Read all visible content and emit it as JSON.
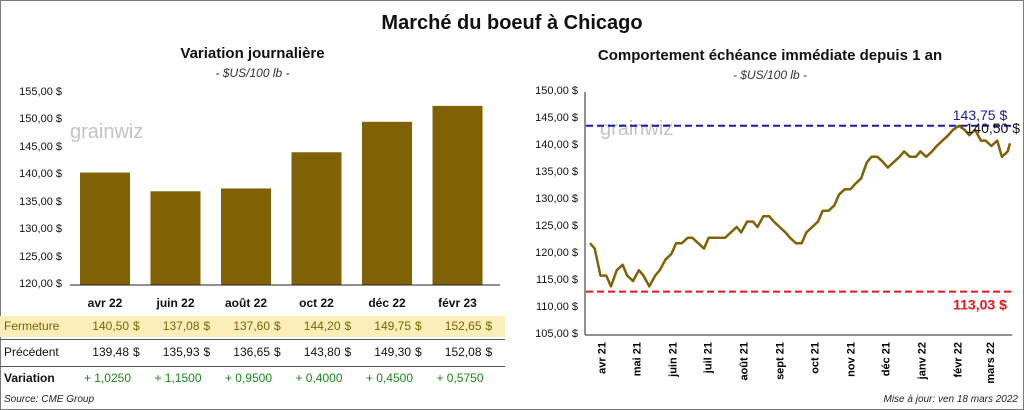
{
  "main_title": "Marché du boeuf à Chicago",
  "left": {
    "title": "Variation  journalière",
    "unit": "- $US/100 lb -",
    "watermark": "grainwiz",
    "yticks": [
      "155,00 $",
      "150,00 $",
      "145,00 $",
      "140,00 $",
      "135,00 $",
      "130,00 $",
      "125,00 $",
      "120,00 $"
    ],
    "bar_color": "#806205"
  },
  "right": {
    "title": "Comportement  échéance immédiate depuis 1 an",
    "unit": "- $US/100 lb -",
    "watermark": "grainwiz",
    "yticks": [
      "150,00 $",
      "145,00 $",
      "140,00 $",
      "135,00 $",
      "130,00 $",
      "125,00 $",
      "120,00 $",
      "115,00 $",
      "110,00 $",
      "105,00 $"
    ],
    "months": [
      "avr 21",
      "mai 21",
      "juin 21",
      "juil 21",
      "août 21",
      "sept 21",
      "oct 21",
      "nov 21",
      "déc 21",
      "janv 22",
      "févr 22",
      "mars 22"
    ],
    "max_label": "143,75 $",
    "min_label": "113,03 $",
    "last_label": "140,50 $",
    "max_color": "#1a1aaa",
    "min_color": "#e8141b",
    "line_color": "#806205"
  },
  "table": {
    "fermeture_label": "Fermeture",
    "precedent_label": "Précédent",
    "variation_label": "Variation",
    "currency": "$",
    "fermeture": [
      "140,50",
      "137,08",
      "137,60",
      "144,20",
      "149,75",
      "152,65"
    ],
    "precedent": [
      "139,48",
      "135,93",
      "136,65",
      "143,80",
      "149,30",
      "152,08"
    ],
    "variation": [
      "+ 1,0250",
      "+ 1,1500",
      "+ 0,9500",
      "+ 0,4000",
      "+ 0,4500",
      "+ 0,5750"
    ],
    "highlight_color": "#fbeeb8"
  },
  "footer": {
    "source": "Source: CME Group",
    "updated": "Mise à jour: ven 18 mars 2022"
  },
  "chart_data": [
    {
      "type": "bar",
      "title": "Variation  journalière",
      "subtitle": "- $US/100 lb -",
      "categories": [
        "avr 22",
        "juin 22",
        "août 22",
        "oct 22",
        "déc 22",
        "févr 23"
      ],
      "values": [
        140.5,
        137.08,
        137.6,
        144.2,
        149.75,
        152.65
      ],
      "ylim": [
        120,
        155
      ],
      "grid": false
    },
    {
      "type": "line",
      "title": "Comportement  échéance immédiate depuis 1 an",
      "subtitle": "- $US/100 lb -",
      "x": [
        "2021-03-22",
        "2021-03-26",
        "2021-03-31",
        "2021-04-05",
        "2021-04-09",
        "2021-04-14",
        "2021-04-19",
        "2021-04-23",
        "2021-04-28",
        "2021-05-03",
        "2021-05-07",
        "2021-05-12",
        "2021-05-17",
        "2021-05-21",
        "2021-05-26",
        "2021-05-31",
        "2021-06-04",
        "2021-06-09",
        "2021-06-14",
        "2021-06-18",
        "2021-06-23",
        "2021-06-28",
        "2021-07-02",
        "2021-07-07",
        "2021-07-12",
        "2021-07-16",
        "2021-07-21",
        "2021-07-26",
        "2021-07-30",
        "2021-08-04",
        "2021-08-09",
        "2021-08-13",
        "2021-08-18",
        "2021-08-23",
        "2021-08-27",
        "2021-09-01",
        "2021-09-06",
        "2021-09-10",
        "2021-09-15",
        "2021-09-20",
        "2021-09-24",
        "2021-09-29",
        "2021-10-04",
        "2021-10-08",
        "2021-10-13",
        "2021-10-18",
        "2021-10-22",
        "2021-10-27",
        "2021-11-01",
        "2021-11-05",
        "2021-11-10",
        "2021-11-15",
        "2021-11-19",
        "2021-11-24",
        "2021-11-29",
        "2021-12-03",
        "2021-12-08",
        "2021-12-13",
        "2021-12-17",
        "2021-12-22",
        "2021-12-27",
        "2021-12-31",
        "2022-01-05",
        "2022-01-10",
        "2022-01-14",
        "2022-01-19",
        "2022-01-24",
        "2022-01-28",
        "2022-02-02",
        "2022-02-07",
        "2022-02-11",
        "2022-02-16",
        "2022-02-21",
        "2022-02-25",
        "2022-03-02",
        "2022-03-07",
        "2022-03-11",
        "2022-03-16",
        "2022-03-18"
      ],
      "values": [
        122,
        121,
        116,
        116,
        114,
        117,
        118,
        116,
        115,
        117,
        116,
        114,
        116,
        117,
        119,
        120,
        122,
        122,
        123,
        123,
        122,
        121,
        123,
        123,
        123,
        123,
        124,
        125,
        124,
        126,
        126,
        125,
        127,
        127,
        126,
        125,
        124,
        123,
        122,
        122,
        124,
        125,
        126,
        128,
        128,
        129,
        131,
        132,
        132,
        133,
        134,
        137,
        138,
        138,
        137,
        136,
        137,
        138,
        139,
        138,
        138,
        139,
        138,
        139,
        140,
        141,
        142,
        143,
        143.75,
        143,
        142,
        143,
        141,
        141,
        140,
        141,
        138,
        139,
        140.5
      ],
      "ylim": [
        105,
        150
      ],
      "reference_lines": [
        {
          "label": "143,75 $",
          "value": 143.75,
          "color": "#1a1aaa",
          "style": "dashed"
        },
        {
          "label": "113,03 $",
          "value": 113.03,
          "color": "#e8141b",
          "style": "dashed"
        }
      ],
      "last_value_label": "140,50 $",
      "grid": false
    }
  ]
}
